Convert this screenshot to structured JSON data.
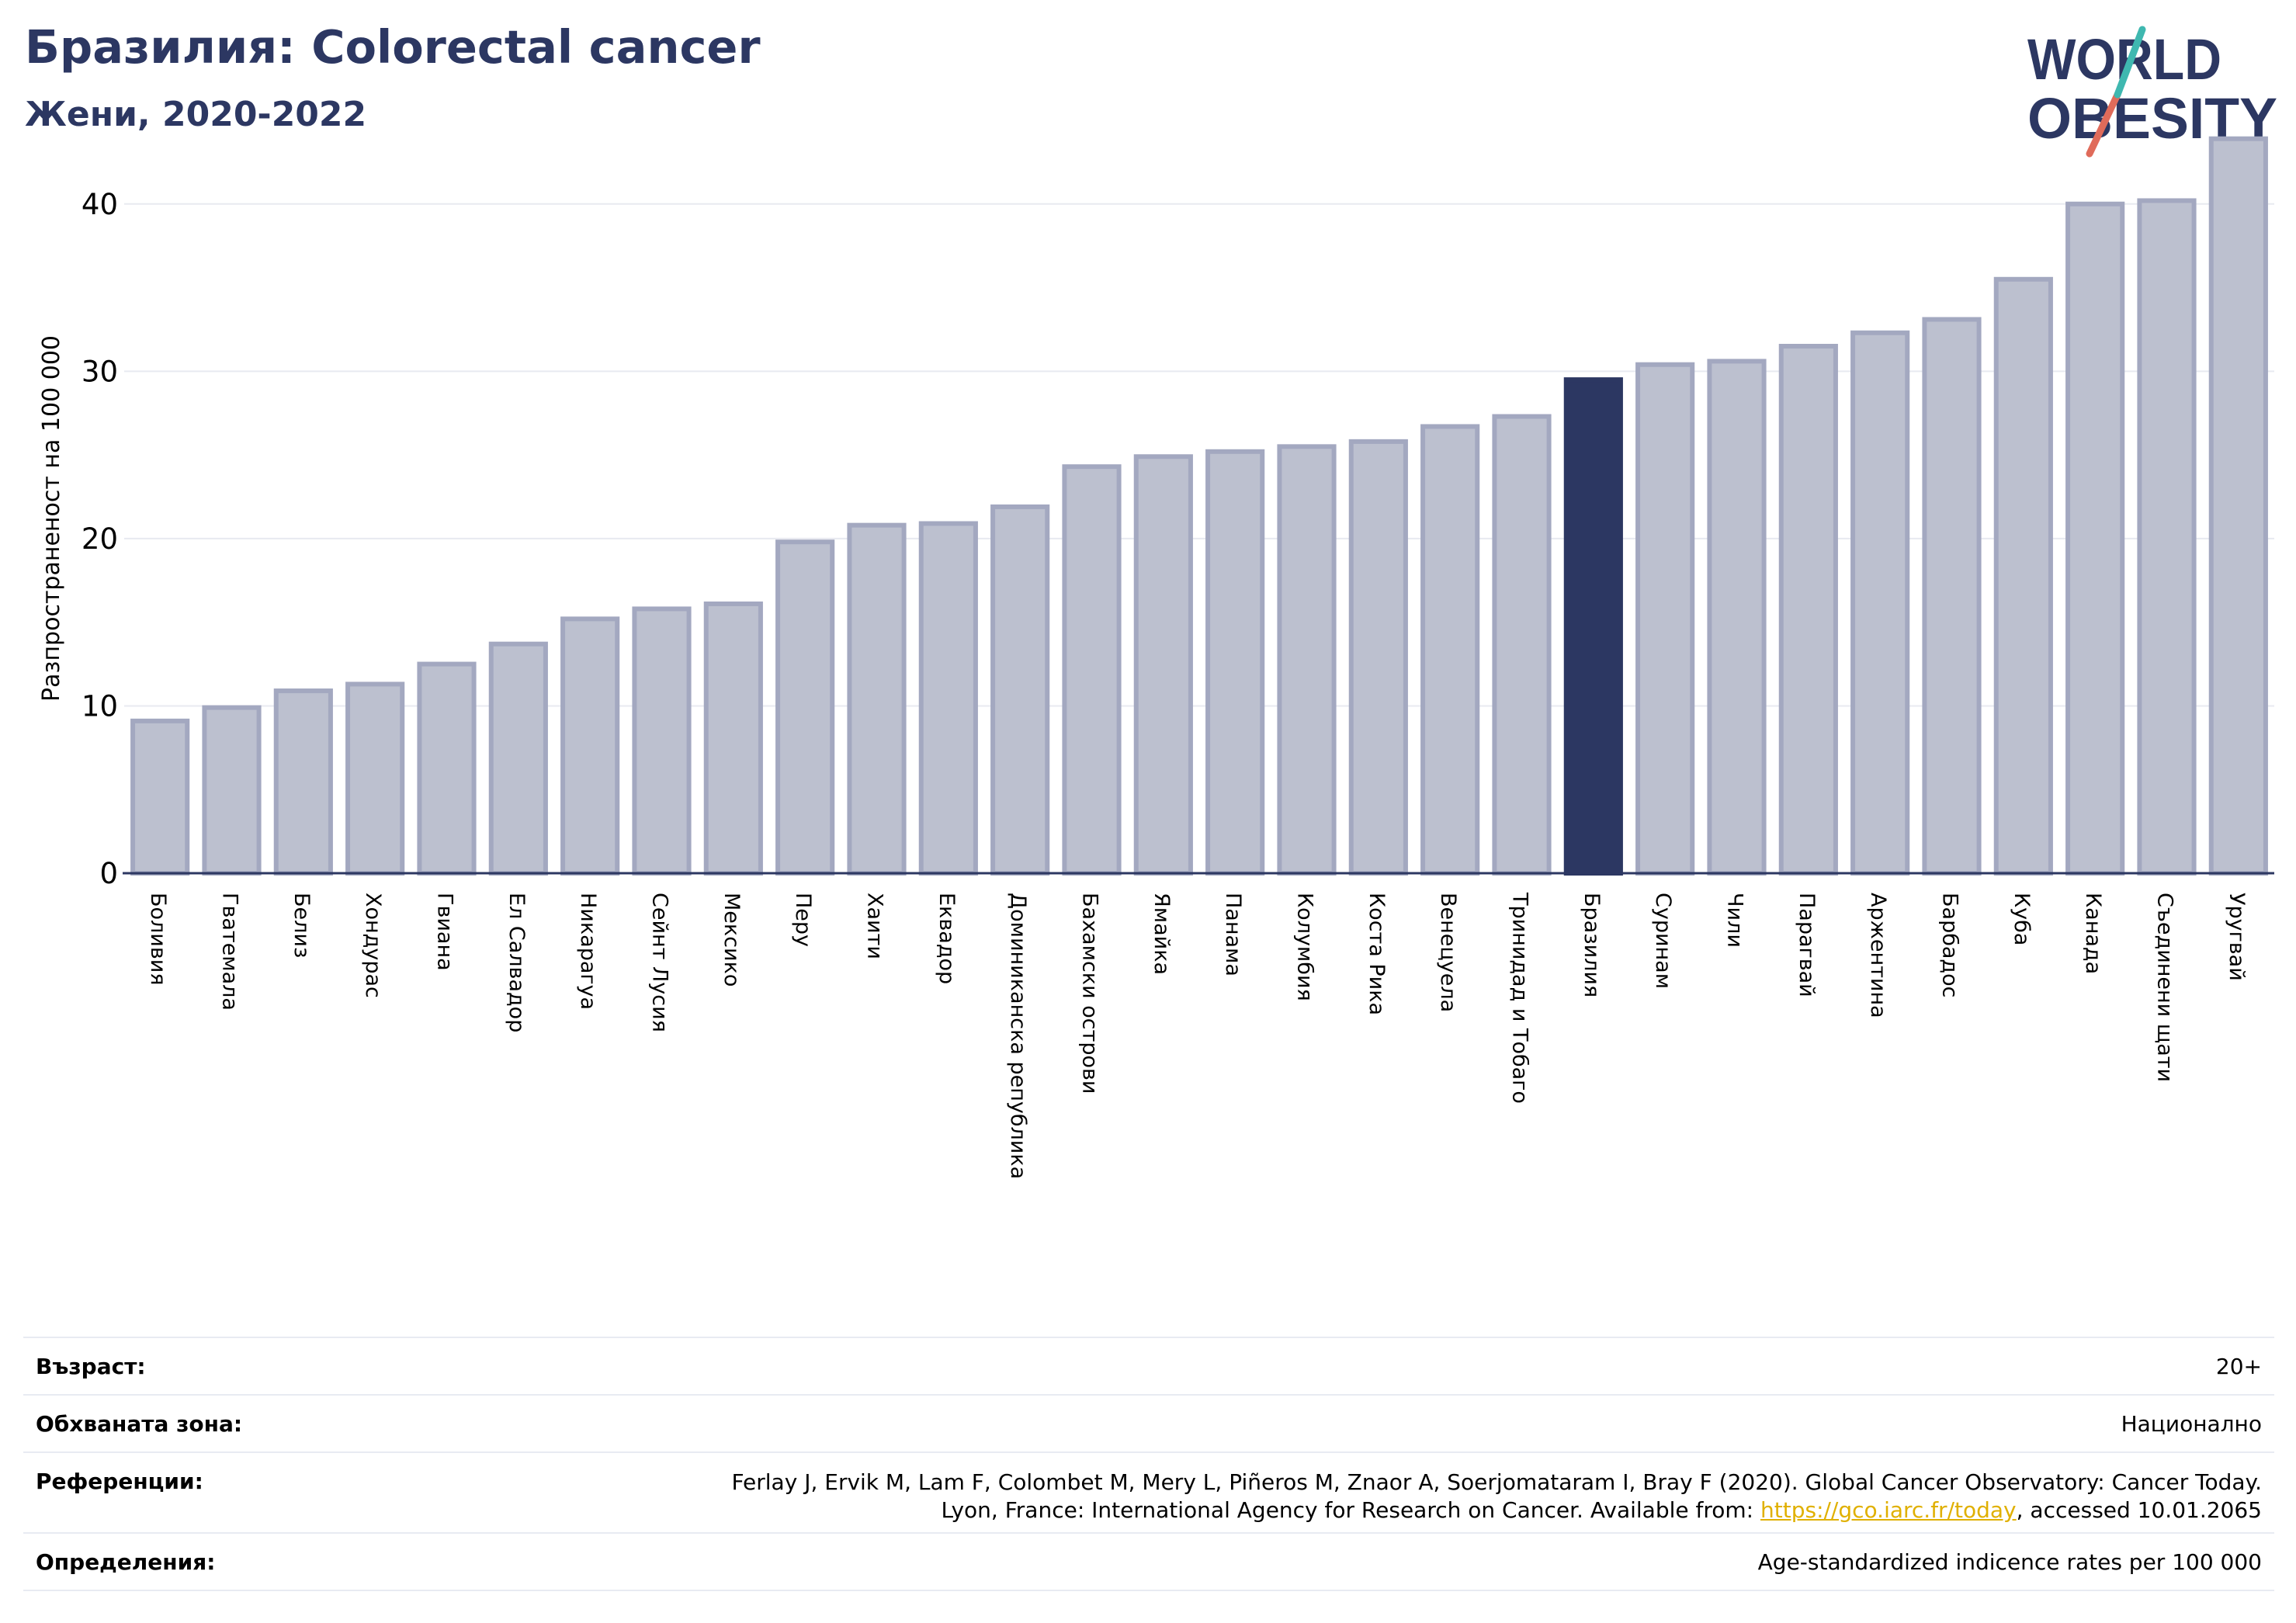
{
  "header": {
    "title": "Бразилия: Colorectal cancer",
    "subtitle": "Жени, 2020-2022"
  },
  "logo": {
    "line1": "W RLD",
    "line2": "OBESITY",
    "text": "WORLD OBESITY",
    "colors": {
      "navy": "#2c3762",
      "teal": "#3fb8b0",
      "coral": "#e06b5a"
    }
  },
  "chart_data": {
    "type": "bar",
    "title": "Бразилия: Colorectal cancer",
    "subtitle": "Жени, 2020-2022",
    "xlabel": "",
    "ylabel": "Разпространеност  на 100 000",
    "ylim": [
      0,
      45
    ],
    "yticks": [
      0,
      10,
      20,
      30,
      40
    ],
    "grid": true,
    "highlight": "Бразилия",
    "colors": {
      "bar": "#bcc0cf",
      "bar_edge": "#a3a8c0",
      "highlight": "#2c3762",
      "grid": "#e8eaf0",
      "axis": "#2c3762"
    },
    "categories": [
      "Боливия",
      "Гватемала",
      "Белиз",
      "Хондурас",
      "Гвиана",
      "Ел Салвадор",
      "Никарагуа",
      "Сейнт Лусия",
      "Мексико",
      "Перу",
      "Хаити",
      "Еквадор",
      "Доминиканска република",
      "Бахамски острови",
      "Ямайка",
      "Панама",
      "Колумбия",
      "Коста Рика",
      "Венецуела",
      "Тринидад и Тобаго",
      "Бразилия",
      "Суринам",
      "Чили",
      "Парагвай",
      "Аржентина",
      "Барбадос",
      "Куба",
      "Канада",
      "Съединени щати",
      "Уругвай"
    ],
    "values": [
      9.1,
      9.9,
      10.9,
      11.3,
      12.5,
      13.7,
      15.2,
      15.8,
      16.1,
      19.8,
      20.8,
      20.9,
      21.9,
      24.3,
      24.9,
      25.2,
      25.5,
      25.8,
      26.7,
      27.3,
      29.5,
      30.4,
      30.6,
      31.5,
      32.3,
      33.1,
      35.5,
      40.0,
      40.2,
      43.9
    ]
  },
  "meta": {
    "age_label": "Възраст:",
    "age_value": "20+",
    "zone_label": "Обхваната зона:",
    "zone_value": "Национално",
    "ref_label": "Референции:",
    "ref_line1": "Ferlay J, Ervik M, Lam F, Colombet M, Mery L, Piñeros M, Znaor A, Soerjomataram I, Bray F (2020). Global Cancer Observatory: Cancer Today.",
    "ref_line2_pre": "Lyon, France: International Agency for Research on Cancer. Available from: ",
    "ref_link": "https://gco.iarc.fr/today",
    "ref_line2_post": ", accessed 10.01.2065",
    "def_label": "Определения:",
    "def_value": "Age-standardized indicence rates per 100 000"
  }
}
